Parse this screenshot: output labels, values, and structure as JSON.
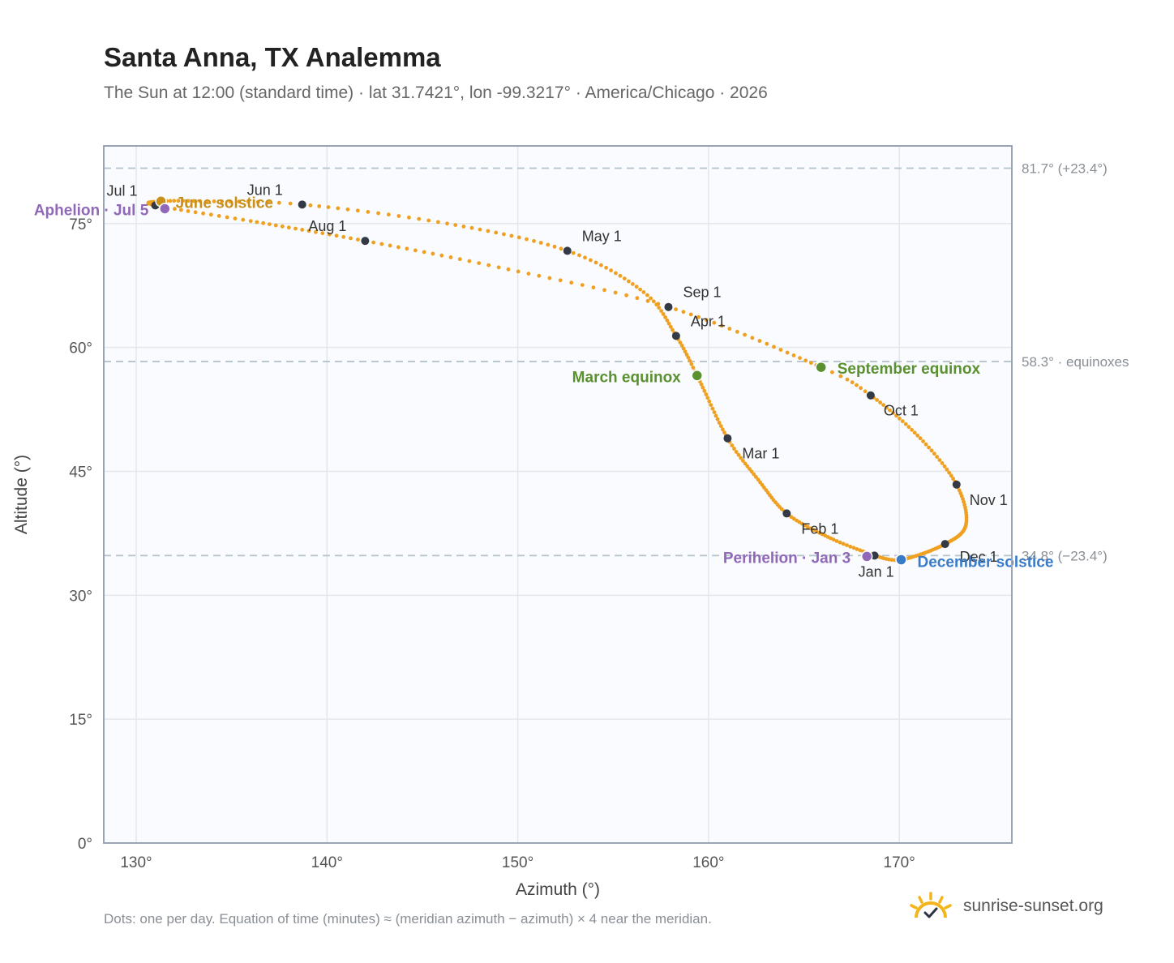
{
  "title": "Santa Anna, TX Analemma",
  "subtitle": "The Sun at 12:00 (standard time) · lat 31.7421°, lon -99.3217° · America/Chicago · 2026",
  "footer": "Dots: one per day. Equation of time (minutes) ≈ (meridian azimuth − azimuth) × 4 near the meridian.",
  "brand": {
    "name": "sunrise-sunset.org",
    "icon": "sun-check-icon"
  },
  "chart_data": {
    "type": "scatter",
    "xlabel": "Azimuth (°)",
    "ylabel": "Altitude (°)",
    "xlim": [
      128.3,
      175.9
    ],
    "ylim": [
      0,
      84.4
    ],
    "xticks": [
      130,
      140,
      150,
      160,
      170
    ],
    "xtick_labels": [
      "130°",
      "140°",
      "150°",
      "160°",
      "170°"
    ],
    "yticks": [
      0,
      15,
      30,
      45,
      60,
      75
    ],
    "ytick_labels": [
      "0°",
      "15°",
      "30°",
      "45°",
      "60°",
      "75°"
    ],
    "grid": true,
    "colors": {
      "path": "#f0a020",
      "month": "#333a45",
      "solstice_june": "#c8901a",
      "solstice_december": "#3a7bc8",
      "equinox": "#5a9030",
      "apsis": "#9068b8",
      "reference": "#b5c3cc"
    },
    "reference_lines": [
      {
        "y": 81.7,
        "label": "81.7° (+23.4°)"
      },
      {
        "y": 58.3,
        "label": "58.3° · equinoxes"
      },
      {
        "y": 34.8,
        "label": "34.8° (−23.4°)"
      }
    ],
    "month_markers": [
      {
        "label": "Jan 1",
        "az": 168.7,
        "alt": 34.8
      },
      {
        "label": "Feb 1",
        "az": 164.1,
        "alt": 39.9
      },
      {
        "label": "Mar 1",
        "az": 161.0,
        "alt": 49.0
      },
      {
        "label": "Apr 1",
        "az": 158.3,
        "alt": 61.4
      },
      {
        "label": "May 1",
        "az": 152.6,
        "alt": 71.7
      },
      {
        "label": "Jun 1",
        "az": 138.7,
        "alt": 77.3
      },
      {
        "label": "Jul 1",
        "az": 131.0,
        "alt": 77.2
      },
      {
        "label": "Aug 1",
        "az": 142.0,
        "alt": 72.9
      },
      {
        "label": "Sep 1",
        "az": 157.9,
        "alt": 64.9
      },
      {
        "label": "Oct 1",
        "az": 168.5,
        "alt": 54.2
      },
      {
        "label": "Nov 1",
        "az": 173.0,
        "alt": 43.4
      },
      {
        "label": "Dec 1",
        "az": 172.4,
        "alt": 36.2
      }
    ],
    "events": [
      {
        "label": "June solstice",
        "az": 131.3,
        "alt": 77.7,
        "kind": "solstice_june"
      },
      {
        "label": "December solstice",
        "az": 170.1,
        "alt": 34.3,
        "kind": "solstice_december"
      },
      {
        "label": "March equinox",
        "az": 159.4,
        "alt": 56.6,
        "kind": "equinox"
      },
      {
        "label": "September equinox",
        "az": 165.9,
        "alt": 57.6,
        "kind": "equinox"
      },
      {
        "label": "Aphelion · Jul 5",
        "az": 131.5,
        "alt": 76.8,
        "kind": "apsis"
      },
      {
        "label": "Perihelion · Jan 3",
        "az": 168.3,
        "alt": 34.7,
        "kind": "apsis"
      }
    ],
    "path_anchors": [
      {
        "doy": 1,
        "az": 168.7,
        "alt": 34.8
      },
      {
        "doy": 16,
        "az": 166.4,
        "alt": 36.9
      },
      {
        "doy": 32,
        "az": 164.1,
        "alt": 39.9
      },
      {
        "doy": 46,
        "az": 162.6,
        "alt": 44.0
      },
      {
        "doy": 60,
        "az": 161.0,
        "alt": 49.0
      },
      {
        "doy": 79,
        "az": 159.4,
        "alt": 56.6
      },
      {
        "doy": 91,
        "az": 158.3,
        "alt": 61.4
      },
      {
        "doy": 105,
        "az": 156.6,
        "alt": 66.7
      },
      {
        "doy": 121,
        "az": 152.6,
        "alt": 71.7
      },
      {
        "doy": 137,
        "az": 146.3,
        "alt": 75.0
      },
      {
        "doy": 152,
        "az": 138.7,
        "alt": 77.3
      },
      {
        "doy": 162,
        "az": 133.7,
        "alt": 77.7
      },
      {
        "doy": 172,
        "az": 131.3,
        "alt": 77.7
      },
      {
        "doy": 182,
        "az": 131.0,
        "alt": 77.2
      },
      {
        "doy": 196,
        "az": 136.0,
        "alt": 75.3
      },
      {
        "doy": 213,
        "az": 142.0,
        "alt": 72.9
      },
      {
        "doy": 228,
        "az": 149.0,
        "alt": 69.7
      },
      {
        "doy": 244,
        "az": 157.9,
        "alt": 64.9
      },
      {
        "doy": 266,
        "az": 165.9,
        "alt": 57.6
      },
      {
        "doy": 274,
        "az": 168.5,
        "alt": 54.2
      },
      {
        "doy": 290,
        "az": 171.1,
        "alt": 49.0
      },
      {
        "doy": 305,
        "az": 173.0,
        "alt": 43.4
      },
      {
        "doy": 320,
        "az": 173.5,
        "alt": 38.6
      },
      {
        "doy": 335,
        "az": 172.4,
        "alt": 36.2
      },
      {
        "doy": 355,
        "az": 170.1,
        "alt": 34.3
      },
      {
        "doy": 366,
        "az": 168.7,
        "alt": 34.8
      }
    ]
  }
}
